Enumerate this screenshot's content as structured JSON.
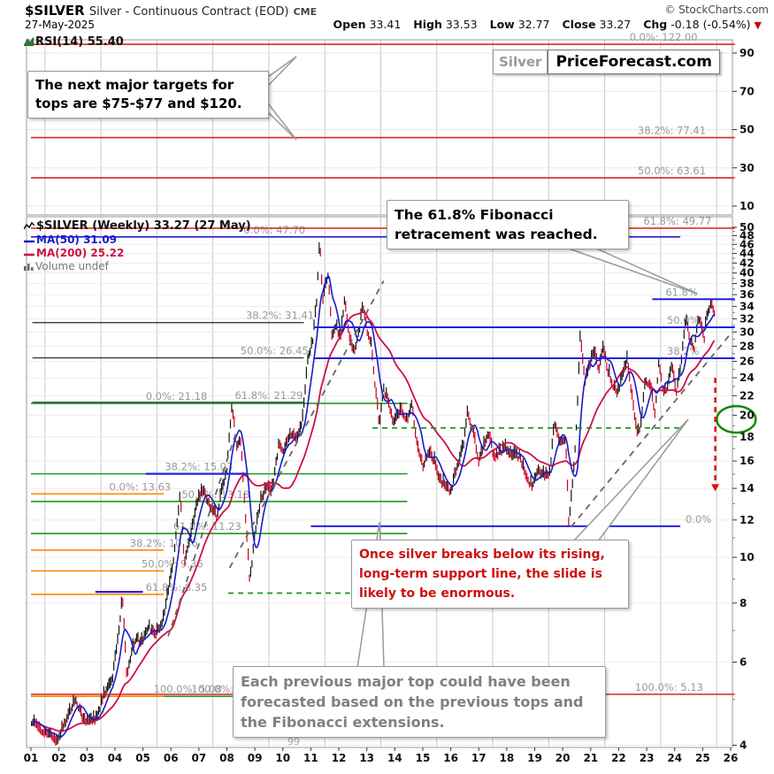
{
  "header": {
    "symbol": "$SILVER",
    "description": "Silver - Continuous Contract (EOD)",
    "exchange": "CME",
    "watermark": "© StockCharts.com",
    "date": "27-May-2025",
    "quote": {
      "open_label": "Open",
      "open": "33.41",
      "high_label": "High",
      "high": "33.53",
      "low_label": "Low",
      "low": "32.77",
      "close_label": "Close",
      "close": "33.27",
      "chg_label": "Chg",
      "chg": "-0.18 (-0.54%)",
      "direction_symbol": "▼",
      "direction_color": "#cc0000"
    }
  },
  "branding": {
    "left": "Silver",
    "right": "PriceForecast.com"
  },
  "rsi_legend": "RSI(14) 55.40",
  "price_legend": {
    "main": "$SILVER (Weekly) 33.27 (27 May)",
    "ma50": "MA(50) 31.09",
    "ma200": "MA(200) 25.22",
    "volume": "Volume undef"
  },
  "annotations": {
    "targets": "The next major targets for tops are $75-$77 and $120.",
    "fib_reached": "The 61.8% Fibonacci retracement was reached.",
    "breakdown": "Once silver breaks below its rising, long-term support line, the slide is likely to be enormous.",
    "history": "Each previous major top could have been forecasted based on the previous tops and the Fibonacci extensions."
  },
  "chart_data": {
    "type": "bar",
    "title": "$SILVER (Weekly) 33.27 (27 May)",
    "x_axis": {
      "labels": [
        "01",
        "02",
        "03",
        "04",
        "05",
        "06",
        "07",
        "08",
        "09",
        "10",
        "11",
        "12",
        "13",
        "14",
        "15",
        "16",
        "17",
        "18",
        "19",
        "20",
        "21",
        "22",
        "23",
        "24",
        "25",
        "26"
      ],
      "start_year": 2001,
      "stray_label": "99"
    },
    "y_axis": {
      "scale": "log",
      "ticks": [
        50,
        48,
        46,
        44,
        42,
        40,
        38,
        36,
        34,
        32,
        30,
        28,
        26,
        24,
        22,
        20,
        18,
        16,
        14,
        12,
        10,
        8,
        6,
        4
      ],
      "range": [
        4,
        50
      ]
    },
    "rsi_axis": {
      "ticks": [
        90,
        70,
        50,
        30,
        10
      ],
      "range": [
        0,
        100
      ]
    },
    "ohlc": {
      "open": 33.41,
      "high": 33.53,
      "low": 32.77,
      "close": 33.27,
      "chg_pct": -0.54
    },
    "rsi_value": 55.4,
    "ma50_value": 31.09,
    "ma200_value": 25.22,
    "colors": {
      "bar_up": "#151515",
      "bar_down": "#cc0022",
      "ma50": "#1a1acc",
      "ma200": "#cc1144",
      "label_gray": "#999999"
    },
    "price_anchors": [
      [
        2001.0,
        4.55
      ],
      [
        2001.3,
        4.35
      ],
      [
        2001.75,
        4.2
      ],
      [
        2001.9,
        4.05
      ],
      [
        2002.3,
        4.6
      ],
      [
        2002.6,
        5.05
      ],
      [
        2002.9,
        4.5
      ],
      [
        2003.3,
        4.55
      ],
      [
        2003.6,
        5.1
      ],
      [
        2003.9,
        5.5
      ],
      [
        2004.1,
        6.7
      ],
      [
        2004.27,
        8.3
      ],
      [
        2004.42,
        5.6
      ],
      [
        2004.6,
        6.3
      ],
      [
        2004.75,
        6.8
      ],
      [
        2004.95,
        6.6
      ],
      [
        2005.2,
        7.2
      ],
      [
        2005.45,
        6.9
      ],
      [
        2005.7,
        7.3
      ],
      [
        2005.95,
        8.8
      ],
      [
        2006.1,
        10.0
      ],
      [
        2006.33,
        13.63
      ],
      [
        2006.48,
        9.8
      ],
      [
        2006.7,
        11.2
      ],
      [
        2006.95,
        13.2
      ],
      [
        2007.15,
        13.9
      ],
      [
        2007.4,
        12.9
      ],
      [
        2007.65,
        12.2
      ],
      [
        2007.85,
        14.2
      ],
      [
        2008.0,
        15.5
      ],
      [
        2008.18,
        21.18
      ],
      [
        2008.35,
        17.2
      ],
      [
        2008.5,
        17.8
      ],
      [
        2008.65,
        12.5
      ],
      [
        2008.82,
        8.9
      ],
      [
        2009.0,
        11.2
      ],
      [
        2009.2,
        13.2
      ],
      [
        2009.45,
        14.2
      ],
      [
        2009.6,
        13.7
      ],
      [
        2009.85,
        17.3
      ],
      [
        2010.05,
        17.0
      ],
      [
        2010.3,
        18.4
      ],
      [
        2010.5,
        17.8
      ],
      [
        2010.7,
        19.5
      ],
      [
        2010.9,
        26.5
      ],
      [
        2011.05,
        28.5
      ],
      [
        2011.2,
        34.5
      ],
      [
        2011.32,
        47.7
      ],
      [
        2011.42,
        35.0
      ],
      [
        2011.55,
        38.5
      ],
      [
        2011.62,
        40.0
      ],
      [
        2011.75,
        29.5
      ],
      [
        2011.9,
        31.5
      ],
      [
        2012.05,
        29.0
      ],
      [
        2012.2,
        35.2
      ],
      [
        2012.4,
        28.8
      ],
      [
        2012.55,
        27.2
      ],
      [
        2012.75,
        31.0
      ],
      [
        2012.85,
        34.4
      ],
      [
        2013.0,
        30.5
      ],
      [
        2013.15,
        28.5
      ],
      [
        2013.3,
        23.2
      ],
      [
        2013.45,
        19.0
      ],
      [
        2013.6,
        23.0
      ],
      [
        2013.75,
        21.5
      ],
      [
        2013.95,
        19.3
      ],
      [
        2014.2,
        20.5
      ],
      [
        2014.45,
        19.7
      ],
      [
        2014.6,
        21.2
      ],
      [
        2014.8,
        17.3
      ],
      [
        2015.0,
        15.6
      ],
      [
        2015.2,
        16.8
      ],
      [
        2015.4,
        16.1
      ],
      [
        2015.6,
        14.6
      ],
      [
        2015.85,
        14.1
      ],
      [
        2016.0,
        13.9
      ],
      [
        2016.2,
        15.4
      ],
      [
        2016.45,
        17.3
      ],
      [
        2016.6,
        20.3
      ],
      [
        2016.8,
        18.6
      ],
      [
        2017.0,
        16.0
      ],
      [
        2017.2,
        17.5
      ],
      [
        2017.35,
        18.4
      ],
      [
        2017.55,
        16.3
      ],
      [
        2017.75,
        16.8
      ],
      [
        2017.95,
        17.1
      ],
      [
        2018.2,
        16.4
      ],
      [
        2018.45,
        16.5
      ],
      [
        2018.7,
        14.9
      ],
      [
        2018.9,
        14.2
      ],
      [
        2019.1,
        15.3
      ],
      [
        2019.35,
        14.9
      ],
      [
        2019.55,
        15.2
      ],
      [
        2019.7,
        19.4
      ],
      [
        2019.9,
        17.5
      ],
      [
        2020.1,
        17.9
      ],
      [
        2020.22,
        11.7
      ],
      [
        2020.4,
        15.5
      ],
      [
        2020.55,
        22.5
      ],
      [
        2020.62,
        29.1
      ],
      [
        2020.8,
        23.8
      ],
      [
        2020.95,
        25.5
      ],
      [
        2021.1,
        27.3
      ],
      [
        2021.3,
        25.2
      ],
      [
        2021.45,
        27.8
      ],
      [
        2021.6,
        25.0
      ],
      [
        2021.8,
        23.3
      ],
      [
        2021.95,
        22.3
      ],
      [
        2022.1,
        24.0
      ],
      [
        2022.3,
        26.2
      ],
      [
        2022.5,
        21.5
      ],
      [
        2022.65,
        18.3
      ],
      [
        2022.8,
        19.2
      ],
      [
        2022.95,
        23.9
      ],
      [
        2023.1,
        23.5
      ],
      [
        2023.3,
        20.1
      ],
      [
        2023.42,
        26.0
      ],
      [
        2023.6,
        22.4
      ],
      [
        2023.75,
        23.2
      ],
      [
        2023.9,
        25.5
      ],
      [
        2024.05,
        22.3
      ],
      [
        2024.2,
        25.0
      ],
      [
        2024.4,
        32.3
      ],
      [
        2024.55,
        29.0
      ],
      [
        2024.7,
        28.0
      ],
      [
        2024.85,
        32.5
      ],
      [
        2024.95,
        31.0
      ],
      [
        2025.05,
        29.0
      ],
      [
        2025.15,
        32.5
      ],
      [
        2025.3,
        34.6
      ],
      [
        2025.42,
        33.27
      ]
    ],
    "fib_sets": [
      {
        "id": "major-extension",
        "line_color": "#dd2222",
        "width": 1.6,
        "levels": [
          {
            "label": "0.0%: 122.00",
            "value": 122.0,
            "x0": 2001.0,
            "x1": 2026.15,
            "label_year": 2023.6
          },
          {
            "label": "38.2%: 77.41",
            "value": 77.41,
            "x0": 2001.0,
            "x1": 2026.15,
            "label_year": 2023.9
          },
          {
            "label": "50.0%: 63.61",
            "value": 63.61,
            "x0": 2001.0,
            "x1": 2026.15,
            "label_year": 2023.9
          },
          {
            "label": "61.8%: 49.77",
            "value": 49.77,
            "x0": 2001.0,
            "x1": 2026.15,
            "label_year": 2024.1
          },
          {
            "label": "100.0%: 5.13",
            "value": 5.13,
            "x0": 2001.0,
            "x1": 2026.15,
            "label_year": 2023.8
          }
        ]
      },
      {
        "id": "retracement-2011",
        "line_color": "#3a3a3a",
        "width": 1.4,
        "levels": [
          {
            "label": "0.0%: 47.70",
            "value": 47.7,
            "x0": 2008.9,
            "x1": 2010.75,
            "label_year": 2009.7
          },
          {
            "label": "38.2%: 31.41",
            "value": 31.41,
            "x0": 2001.05,
            "x1": 2010.75,
            "label_year": 2009.9
          },
          {
            "label": "50.0%: 26.45",
            "value": 26.45,
            "x0": 2001.05,
            "x1": 2010.75,
            "label_year": 2009.7
          },
          {
            "label": "61.8%: 21.29",
            "value": 21.29,
            "x0": 2001.05,
            "x1": 2010.75,
            "label_year": 2009.5
          }
        ]
      },
      {
        "id": "retracement-2008",
        "line_color": "#229922",
        "width": 1.6,
        "levels": [
          {
            "label": "0.0%: 21.18",
            "value": 21.18,
            "x0": 2001.0,
            "x1": 2014.45,
            "label_year": 2006.2
          },
          {
            "label": "38.2%: 15.03",
            "value": 15.03,
            "x0": 2001.0,
            "x1": 2014.45,
            "label_year": 2007.0
          },
          {
            "label": "50.0%: 13.13",
            "value": 13.13,
            "x0": 2001.0,
            "x1": 2014.45,
            "label_year": 2007.6
          },
          {
            "label": "61.8%: 11.23",
            "value": 11.23,
            "x0": 2001.0,
            "x1": 2014.45,
            "label_year": 2007.3
          },
          {
            "label": "100.0%: 5.08",
            "value": 5.08,
            "x0": 2001.0,
            "x1": 2014.45,
            "label_year": 2006.6
          }
        ]
      },
      {
        "id": "retracement-2006",
        "line_color": "#ff8800",
        "width": 1.6,
        "levels": [
          {
            "label": "0.0%: 13.63",
            "value": 13.63,
            "x0": 2001.0,
            "x1": 2005.75,
            "label_year": 2004.9
          },
          {
            "label": "38.2%: 10.36",
            "value": 10.36,
            "x0": 2001.0,
            "x1": 2005.75,
            "label_year": 2005.75
          },
          {
            "label": "50.0%: 9.36",
            "value": 9.36,
            "x0": 2001.0,
            "x1": 2005.75,
            "label_year": 2006.05
          },
          {
            "label": "61.8%: 8.35",
            "value": 8.35,
            "x0": 2001.0,
            "x1": 2005.75,
            "label_year": 2006.2
          },
          {
            "label": "100.0%: 5.08",
            "value": 5.08,
            "x0": 2001.0,
            "x1": 2005.75,
            "label_year": 2007.95
          }
        ]
      },
      {
        "id": "rally-2020-retracement",
        "line_color": "#2222dd",
        "width": 2,
        "levels": [
          {
            "label": "61.8%",
            "value": 35.2,
            "x0": 2023.2,
            "x1": 2026.15,
            "label_year": 2024.25
          },
          {
            "label": "50.0%",
            "value": 30.7,
            "x0": 2011.1,
            "x1": 2026.15,
            "label_year": 2024.3
          },
          {
            "label": "38.2%",
            "value": 26.4,
            "x0": 2011.1,
            "x1": 2026.15,
            "label_year": 2024.3
          },
          {
            "label": "0.0%",
            "value": 11.64,
            "x0": 2011.0,
            "x1": 2024.2,
            "label_year": 2024.85
          }
        ]
      }
    ],
    "support_lines": [
      {
        "color": "#2222dd",
        "style": "solid",
        "value": 47.7,
        "x0": 2001.0,
        "x1": 2024.2,
        "width": 1.6
      },
      {
        "color": "#2222dd",
        "style": "solid",
        "value": 15.03,
        "x0": 2005.1,
        "x1": 2008.75,
        "width": 2.2
      },
      {
        "color": "#2222dd",
        "style": "solid",
        "value": 8.45,
        "x0": 2003.3,
        "x1": 2005.0,
        "width": 2.2
      },
      {
        "color": "#119911",
        "style": "dashed",
        "value": 18.8,
        "x0": 2013.2,
        "x1": 2024.2,
        "width": 1.8
      },
      {
        "color": "#119911",
        "style": "dashed",
        "value": 8.4,
        "x0": 2008.05,
        "x1": 2012.4,
        "width": 1.8
      }
    ],
    "trendlines": [
      {
        "x0": 2005.9,
        "p0": 6.8,
        "x1": 2008.35,
        "p1": 18.5
      },
      {
        "x0": 2008.1,
        "p0": 9.5,
        "x1": 2013.6,
        "p1": 38.5
      },
      {
        "x0": 2020.3,
        "p0": 11.6,
        "x1": 2026.05,
        "p1": 30.0
      }
    ],
    "highlight_circle": {
      "year": 2026.2,
      "price": 19.6,
      "color": "#0b8a0b"
    },
    "decline_arrow": {
      "year": 2025.45,
      "from_price": 24.0,
      "to_price": 13.8,
      "color": "#e01010"
    }
  }
}
